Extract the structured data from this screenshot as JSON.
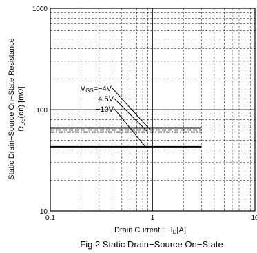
{
  "chart_data": {
    "type": "line",
    "xscale": "log",
    "yscale": "log",
    "xlim": [
      0.1,
      10
    ],
    "ylim": [
      10,
      1000
    ],
    "grid": true,
    "x_ticks": [
      "0.1",
      "1",
      "10"
    ],
    "y_ticks": [
      "10",
      "100",
      "1000"
    ],
    "xlabel": "Drain Current : −I",
    "xlabel_sub": "D",
    "xlabel_unit": "[A]",
    "ylabel_line1": "Static Drain−Source  On−State  Resistance",
    "ylabel_line2_pre": "R",
    "ylabel_line2_sub": "DS",
    "ylabel_line2_post": "(on) [mΩ]",
    "caption": "Fig.2  Static Drain−Source  On−State",
    "series": [
      {
        "label_pre": "V",
        "label_sub": "GS",
        "label_post": "=−4V",
        "x": [
          0.1,
          3
        ],
        "y": [
          63,
          63
        ],
        "style": "dashed",
        "leader_to": [
          0.95,
          63
        ]
      },
      {
        "label_pre": "",
        "label_sub": "",
        "label_post": "−4.5V",
        "x": [
          0.1,
          3
        ],
        "y": [
          60,
          60
        ],
        "style": "dashdot",
        "leader_to": [
          0.9,
          60
        ]
      },
      {
        "label_pre": "",
        "label_sub": "",
        "label_post": "−10V",
        "x": [
          0.1,
          3
        ],
        "y": [
          43,
          43
        ],
        "style": "solid",
        "leader_to": [
          0.85,
          43
        ]
      },
      {
        "label_pre": "",
        "label_sub": "",
        "label_post": "",
        "x": [
          0.1,
          3
        ],
        "y": [
          66,
          66
        ],
        "style": "solid",
        "leader_to": null
      }
    ]
  }
}
